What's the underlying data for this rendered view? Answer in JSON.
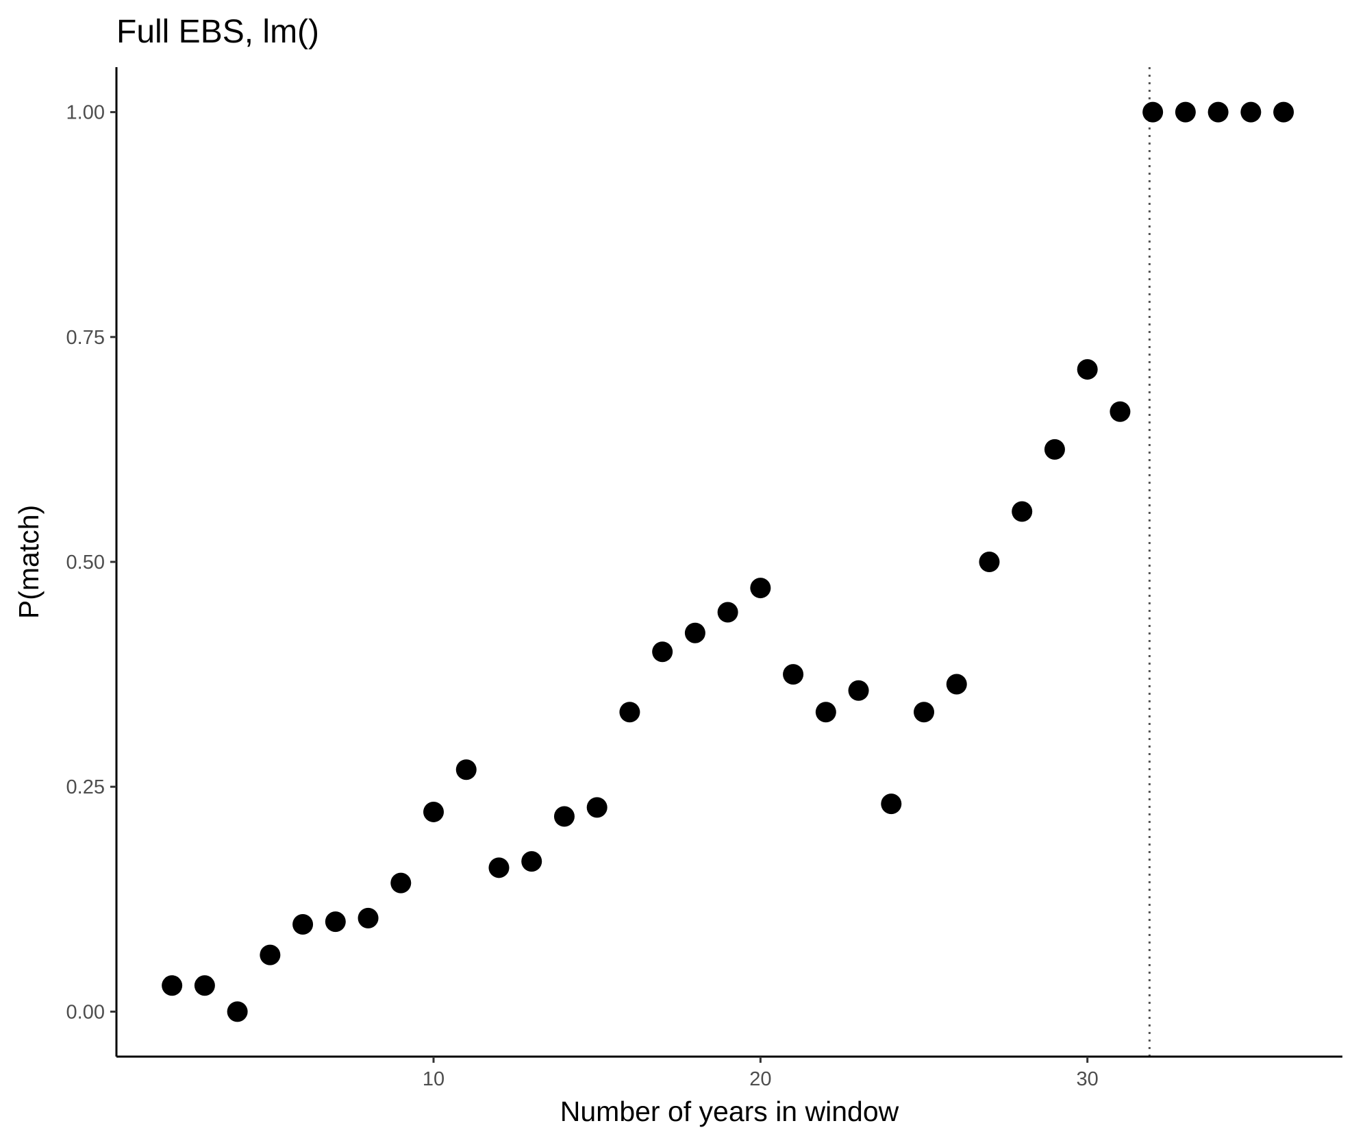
{
  "chart_data": {
    "type": "scatter",
    "title": "Full EBS, lm()",
    "xlabel": "Number of years in window",
    "ylabel": "P(match)",
    "xlim": [
      0.3,
      37.8
    ],
    "ylim": [
      -0.05,
      1.05
    ],
    "x_ticks": [
      10,
      20,
      30
    ],
    "x_tick_labels": [
      "10",
      "20",
      "30"
    ],
    "y_ticks": [
      0,
      0.25,
      0.5,
      0.75,
      1
    ],
    "y_tick_labels": [
      "0.00",
      "0.25",
      "0.50",
      "0.75",
      "1.00"
    ],
    "grid": false,
    "vline": {
      "x": 31.9,
      "style": "dotted",
      "color": "#555555"
    },
    "point_color": "#000000",
    "points": [
      {
        "x": 2,
        "y": 0.029
      },
      {
        "x": 3,
        "y": 0.029
      },
      {
        "x": 4,
        "y": 0.0
      },
      {
        "x": 5,
        "y": 0.063
      },
      {
        "x": 6,
        "y": 0.097
      },
      {
        "x": 7,
        "y": 0.1
      },
      {
        "x": 8,
        "y": 0.104
      },
      {
        "x": 9,
        "y": 0.143
      },
      {
        "x": 10,
        "y": 0.222
      },
      {
        "x": 11,
        "y": 0.269
      },
      {
        "x": 12,
        "y": 0.16
      },
      {
        "x": 13,
        "y": 0.167
      },
      {
        "x": 14,
        "y": 0.217
      },
      {
        "x": 15,
        "y": 0.227
      },
      {
        "x": 16,
        "y": 0.333
      },
      {
        "x": 17,
        "y": 0.4
      },
      {
        "x": 18,
        "y": 0.421
      },
      {
        "x": 19,
        "y": 0.444
      },
      {
        "x": 20,
        "y": 0.471
      },
      {
        "x": 21,
        "y": 0.375
      },
      {
        "x": 22,
        "y": 0.333
      },
      {
        "x": 23,
        "y": 0.357
      },
      {
        "x": 24,
        "y": 0.231
      },
      {
        "x": 25,
        "y": 0.333
      },
      {
        "x": 26,
        "y": 0.364
      },
      {
        "x": 27,
        "y": 0.5
      },
      {
        "x": 28,
        "y": 0.556
      },
      {
        "x": 29,
        "y": 0.625
      },
      {
        "x": 30,
        "y": 0.714
      },
      {
        "x": 31,
        "y": 0.667
      },
      {
        "x": 32,
        "y": 1.0
      },
      {
        "x": 33,
        "y": 1.0
      },
      {
        "x": 34,
        "y": 1.0
      },
      {
        "x": 35,
        "y": 1.0
      },
      {
        "x": 36,
        "y": 1.0
      }
    ]
  }
}
